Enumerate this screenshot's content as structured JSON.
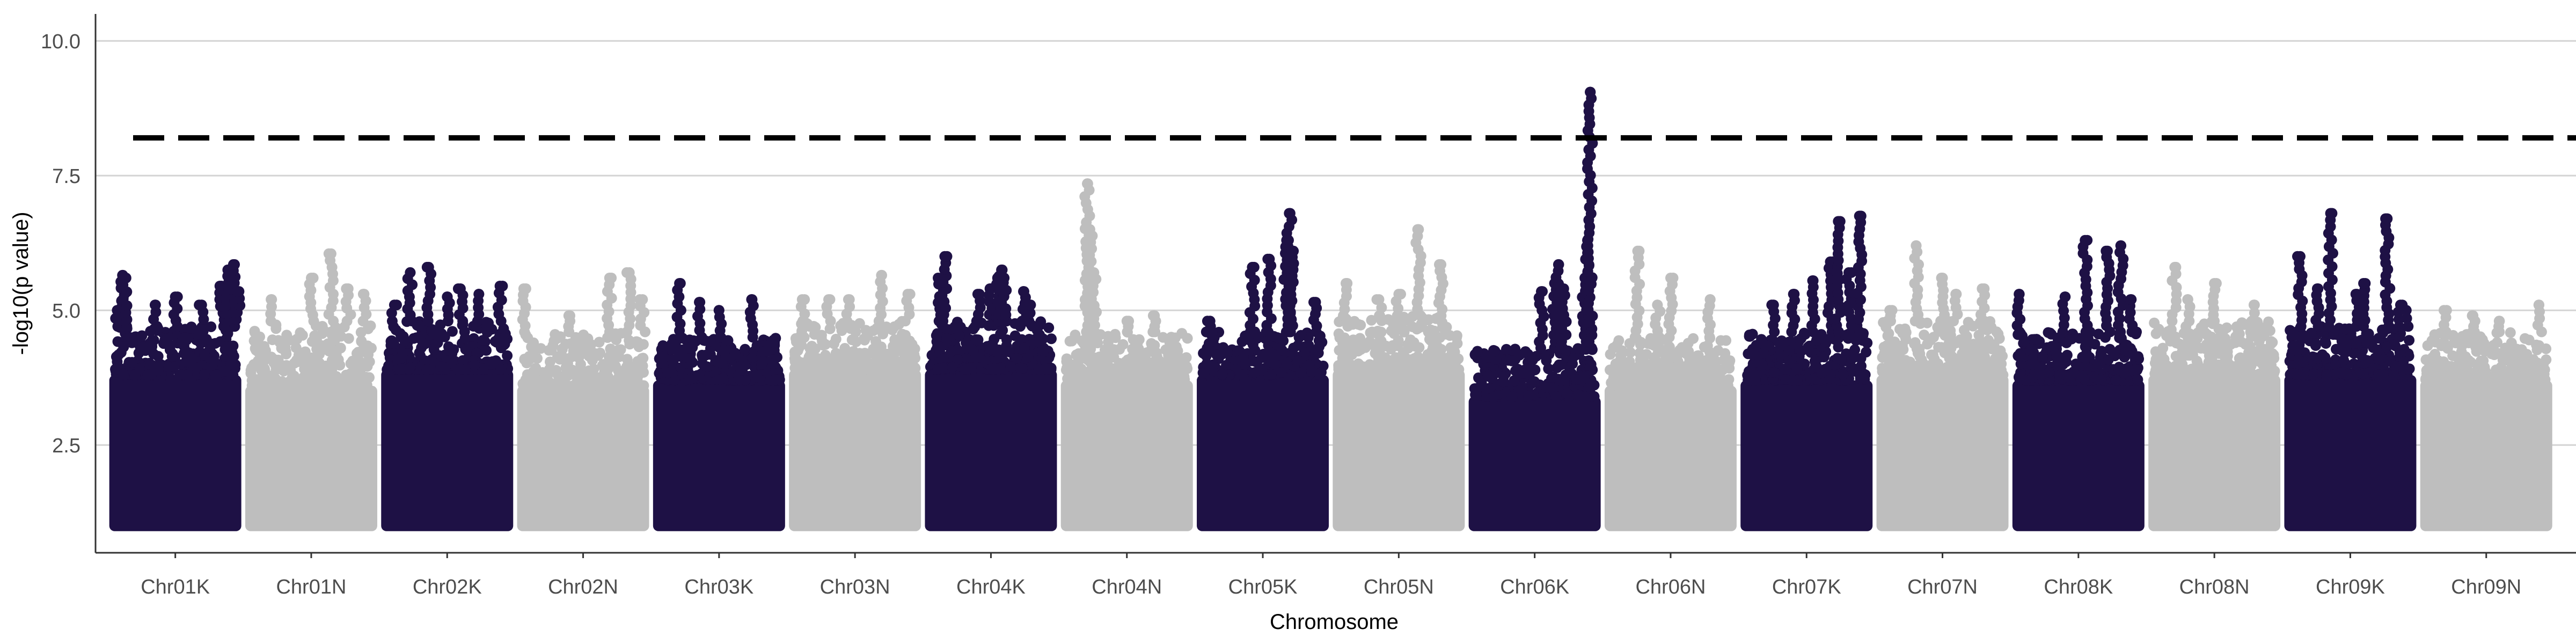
{
  "chart_data": {
    "type": "scatter",
    "title": "",
    "xlabel": "Chromosome",
    "ylabel": "-log10(p value)",
    "ylim": [
      0.5,
      10.5
    ],
    "yticks": [
      2.5,
      5.0,
      7.5,
      10.0
    ],
    "ytick_labels": [
      "2.5",
      "5.0",
      "7.5",
      "10.0"
    ],
    "grid": "horizontal major gridlines",
    "legend": "none",
    "significance_threshold": 8.2,
    "colors": {
      "odd": "#1e1145",
      "even": "#bebebe",
      "threshold": "#000000",
      "grid": "#d4d4d4",
      "axis": "#333333"
    },
    "categories": [
      "Chr01K",
      "Chr01N",
      "Chr02K",
      "Chr02N",
      "Chr03K",
      "Chr03N",
      "Chr04K",
      "Chr04N",
      "Chr05K",
      "Chr05N",
      "Chr06K",
      "Chr06N",
      "Chr07K",
      "Chr07N",
      "Chr08K",
      "Chr08N",
      "Chr09K",
      "Chr09N"
    ],
    "series": [
      {
        "category": "Chr01K",
        "color": "#1e1145",
        "dense_top": 3.8,
        "scatter_top": 4.7,
        "peaks": [
          [
            0.06,
            5.0
          ],
          [
            0.1,
            5.65
          ],
          [
            0.12,
            5.6
          ],
          [
            0.35,
            5.1
          ],
          [
            0.5,
            5.25
          ],
          [
            0.7,
            5.1
          ],
          [
            0.85,
            5.45
          ],
          [
            0.9,
            5.75
          ],
          [
            0.94,
            5.85
          ],
          [
            0.97,
            5.35
          ]
        ]
      },
      {
        "category": "Chr01N",
        "color": "#bebebe",
        "dense_top": 3.6,
        "scatter_top": 4.8,
        "peaks": [
          [
            0.2,
            5.2
          ],
          [
            0.5,
            5.6
          ],
          [
            0.65,
            6.05
          ],
          [
            0.78,
            5.4
          ],
          [
            0.9,
            5.3
          ]
        ]
      },
      {
        "category": "Chr02K",
        "color": "#1e1145",
        "dense_top": 3.9,
        "scatter_top": 4.8,
        "peaks": [
          [
            0.1,
            5.1
          ],
          [
            0.22,
            5.7
          ],
          [
            0.36,
            5.8
          ],
          [
            0.5,
            5.25
          ],
          [
            0.6,
            5.4
          ],
          [
            0.74,
            5.3
          ],
          [
            0.9,
            5.45
          ]
        ]
      },
      {
        "category": "Chr02N",
        "color": "#bebebe",
        "dense_top": 3.6,
        "scatter_top": 4.6,
        "peaks": [
          [
            0.05,
            5.4
          ],
          [
            0.4,
            4.9
          ],
          [
            0.7,
            5.6
          ],
          [
            0.85,
            5.7
          ],
          [
            0.95,
            5.2
          ]
        ]
      },
      {
        "category": "Chr03K",
        "color": "#1e1145",
        "dense_top": 3.7,
        "scatter_top": 4.5,
        "peaks": [
          [
            0.2,
            5.5
          ],
          [
            0.35,
            5.15
          ],
          [
            0.5,
            5.0
          ],
          [
            0.75,
            5.2
          ]
        ]
      },
      {
        "category": "Chr03N",
        "color": "#bebebe",
        "dense_top": 3.9,
        "scatter_top": 4.8,
        "peaks": [
          [
            0.1,
            5.2
          ],
          [
            0.3,
            5.2
          ],
          [
            0.45,
            5.2
          ],
          [
            0.7,
            5.65
          ],
          [
            0.9,
            5.3
          ]
        ]
      },
      {
        "category": "Chr04K",
        "color": "#1e1145",
        "dense_top": 3.9,
        "scatter_top": 4.8,
        "peaks": [
          [
            0.12,
            5.6
          ],
          [
            0.15,
            6.0
          ],
          [
            0.4,
            5.3
          ],
          [
            0.5,
            5.4
          ],
          [
            0.55,
            5.6
          ],
          [
            0.58,
            5.75
          ],
          [
            0.6,
            5.6
          ],
          [
            0.75,
            5.35
          ],
          [
            0.8,
            5.1
          ]
        ]
      },
      {
        "category": "Chr04N",
        "color": "#bebebe",
        "dense_top": 3.7,
        "scatter_top": 4.6,
        "peaks": [
          [
            0.2,
            7.35
          ],
          [
            0.22,
            6.5
          ],
          [
            0.25,
            5.7
          ],
          [
            0.5,
            4.8
          ],
          [
            0.7,
            4.9
          ]
        ]
      },
      {
        "category": "Chr05K",
        "color": "#1e1145",
        "dense_top": 3.8,
        "scatter_top": 4.6,
        "peaks": [
          [
            0.1,
            4.8
          ],
          [
            0.42,
            5.8
          ],
          [
            0.55,
            5.95
          ],
          [
            0.68,
            6.3
          ],
          [
            0.7,
            6.8
          ],
          [
            0.72,
            6.1
          ],
          [
            0.9,
            5.15
          ]
        ]
      },
      {
        "category": "Chr05N",
        "color": "#bebebe",
        "dense_top": 3.9,
        "scatter_top": 4.9,
        "peaks": [
          [
            0.1,
            5.5
          ],
          [
            0.35,
            5.2
          ],
          [
            0.5,
            5.3
          ],
          [
            0.65,
            6.5
          ],
          [
            0.82,
            5.85
          ]
        ]
      },
      {
        "category": "Chr06K",
        "color": "#1e1145",
        "dense_top": 3.4,
        "scatter_top": 4.3,
        "peaks": [
          [
            0.55,
            5.35
          ],
          [
            0.65,
            5.5
          ],
          [
            0.68,
            5.85
          ],
          [
            0.72,
            5.4
          ],
          [
            0.88,
            5.6
          ],
          [
            0.9,
            6.3
          ],
          [
            0.92,
            9.05
          ]
        ]
      },
      {
        "category": "Chr06N",
        "color": "#bebebe",
        "dense_top": 3.6,
        "scatter_top": 4.5,
        "peaks": [
          [
            0.25,
            6.1
          ],
          [
            0.4,
            5.1
          ],
          [
            0.5,
            5.6
          ],
          [
            0.8,
            5.2
          ]
        ]
      },
      {
        "category": "Chr07K",
        "color": "#1e1145",
        "dense_top": 3.7,
        "scatter_top": 4.6,
        "peaks": [
          [
            0.25,
            5.1
          ],
          [
            0.4,
            5.3
          ],
          [
            0.55,
            5.55
          ],
          [
            0.68,
            5.9
          ],
          [
            0.74,
            6.65
          ],
          [
            0.82,
            5.7
          ],
          [
            0.9,
            6.75
          ]
        ]
      },
      {
        "category": "Chr07N",
        "color": "#bebebe",
        "dense_top": 3.8,
        "scatter_top": 4.8,
        "peaks": [
          [
            0.1,
            5.0
          ],
          [
            0.3,
            6.2
          ],
          [
            0.5,
            5.6
          ],
          [
            0.6,
            5.3
          ],
          [
            0.8,
            5.4
          ]
        ]
      },
      {
        "category": "Chr08K",
        "color": "#1e1145",
        "dense_top": 3.7,
        "scatter_top": 4.6,
        "peaks": [
          [
            0.05,
            5.3
          ],
          [
            0.4,
            5.25
          ],
          [
            0.55,
            6.3
          ],
          [
            0.72,
            6.1
          ],
          [
            0.82,
            6.2
          ],
          [
            0.9,
            5.2
          ]
        ]
      },
      {
        "category": "Chr08N",
        "color": "#bebebe",
        "dense_top": 3.8,
        "scatter_top": 4.8,
        "peaks": [
          [
            0.2,
            5.8
          ],
          [
            0.3,
            5.2
          ],
          [
            0.5,
            5.5
          ],
          [
            0.8,
            5.1
          ]
        ]
      },
      {
        "category": "Chr09K",
        "color": "#1e1145",
        "dense_top": 3.8,
        "scatter_top": 4.7,
        "peaks": [
          [
            0.12,
            6.0
          ],
          [
            0.25,
            5.4
          ],
          [
            0.35,
            6.8
          ],
          [
            0.55,
            5.3
          ],
          [
            0.6,
            5.5
          ],
          [
            0.78,
            6.7
          ],
          [
            0.88,
            5.1
          ],
          [
            0.92,
            5.0
          ]
        ]
      },
      {
        "category": "Chr09N",
        "color": "#bebebe",
        "dense_top": 3.7,
        "scatter_top": 4.6,
        "peaks": [
          [
            0.2,
            5.0
          ],
          [
            0.4,
            4.9
          ],
          [
            0.6,
            4.8
          ],
          [
            0.9,
            5.1
          ]
        ]
      }
    ]
  }
}
